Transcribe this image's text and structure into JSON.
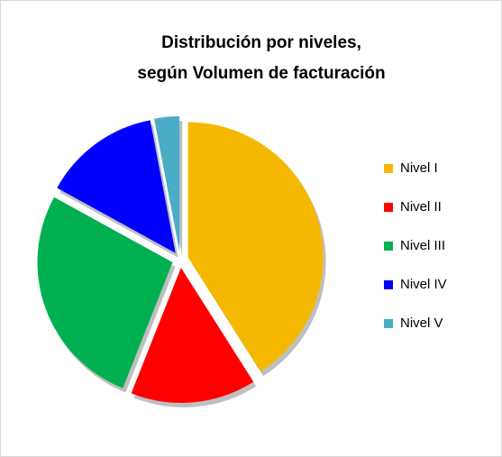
{
  "chart_data": {
    "type": "pie",
    "title": [
      "Distribución por niveles,",
      "según Volumen de facturación"
    ],
    "categories": [
      "Nivel  I",
      "Nivel  II",
      "Nivel  III",
      "Nivel  IV",
      "Nivel  V"
    ],
    "values": [
      41,
      15,
      27,
      14,
      3
    ],
    "colors": [
      "#f5b800",
      "#ff0000",
      "#00b050",
      "#0000ff",
      "#4bacc6"
    ],
    "legend": "right"
  }
}
